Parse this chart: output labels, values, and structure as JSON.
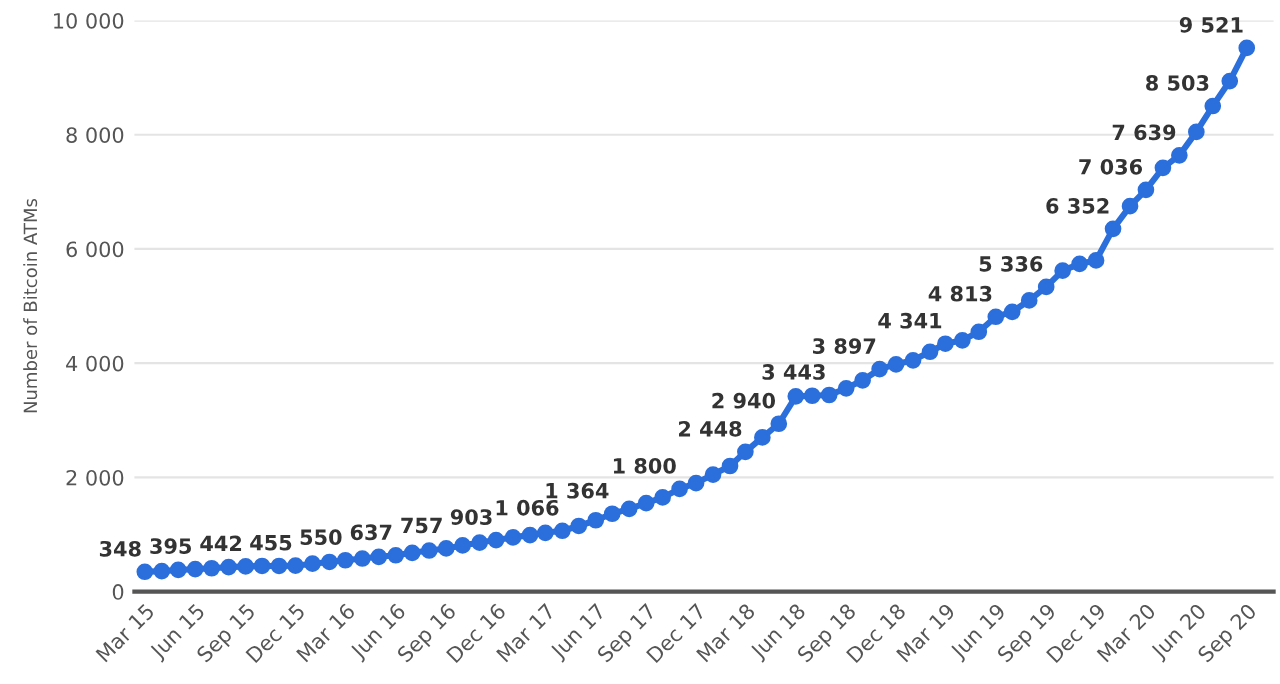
{
  "chart_data": {
    "type": "line",
    "ylabel": "Number of Bitcoin ATMs",
    "x": [
      "2015-03",
      "2015-04",
      "2015-05",
      "2015-06",
      "2015-07",
      "2015-08",
      "2015-09",
      "2015-10",
      "2015-11",
      "2015-12",
      "2016-01",
      "2016-02",
      "2016-03",
      "2016-04",
      "2016-05",
      "2016-06",
      "2016-07",
      "2016-08",
      "2016-09",
      "2016-10",
      "2016-11",
      "2016-12",
      "2017-01",
      "2017-02",
      "2017-03",
      "2017-04",
      "2017-05",
      "2017-06",
      "2017-07",
      "2017-08",
      "2017-09",
      "2017-10",
      "2017-11",
      "2017-12",
      "2018-01",
      "2018-02",
      "2018-03",
      "2018-04",
      "2018-05",
      "2018-06",
      "2018-07",
      "2018-08",
      "2018-09",
      "2018-10",
      "2018-11",
      "2018-12",
      "2019-01",
      "2019-02",
      "2019-03",
      "2019-04",
      "2019-05",
      "2019-06",
      "2019-07",
      "2019-08",
      "2019-09",
      "2019-10",
      "2019-11",
      "2019-12",
      "2020-01",
      "2020-02",
      "2020-03",
      "2020-04",
      "2020-05",
      "2020-06",
      "2020-07",
      "2020-08",
      "2020-09"
    ],
    "series": [
      {
        "color": "#2b6fdc",
        "values": [
          348,
          360,
          380,
          395,
          410,
          430,
          442,
          450,
          450,
          455,
          490,
          520,
          550,
          580,
          610,
          637,
          680,
          720,
          757,
          810,
          860,
          903,
          950,
          990,
          1030,
          1066,
          1150,
          1250,
          1364,
          1450,
          1550,
          1650,
          1800,
          1900,
          2050,
          2200,
          2448,
          2700,
          2940,
          3420,
          3430,
          3443,
          3560,
          3700,
          3897,
          3980,
          4050,
          4200,
          4341,
          4400,
          4550,
          4813,
          4900,
          5100,
          5336,
          5620,
          5740,
          5800,
          6352,
          6750,
          7036,
          7420,
          7639,
          8050,
          8503,
          8940,
          9521
        ],
        "value_labels": [
          "348",
          null,
          null,
          "395",
          null,
          null,
          "442",
          null,
          null,
          "455",
          null,
          null,
          "550",
          null,
          null,
          "637",
          null,
          null,
          "757",
          null,
          null,
          "903",
          null,
          null,
          null,
          "1 066",
          null,
          null,
          "1 364",
          null,
          null,
          null,
          "1 800",
          null,
          null,
          null,
          "2 448",
          null,
          "2 940",
          null,
          null,
          "3 443",
          null,
          null,
          "3 897",
          null,
          null,
          null,
          "4 341",
          null,
          null,
          "4 813",
          null,
          null,
          "5 336",
          null,
          null,
          null,
          "6 352",
          null,
          "7 036",
          null,
          "7 639",
          null,
          "8 503",
          null,
          "9 521"
        ]
      }
    ],
    "xlim": [
      "2015-02-10",
      "2020-10-20"
    ],
    "xticks": [
      {
        "value": "2015-03",
        "label": "Mar 15"
      },
      {
        "value": "2015-06",
        "label": "Jun 15"
      },
      {
        "value": "2015-09",
        "label": "Sep 15"
      },
      {
        "value": "2015-12",
        "label": "Dec 15"
      },
      {
        "value": "2016-03",
        "label": "Mar 16"
      },
      {
        "value": "2016-06",
        "label": "Jun 16"
      },
      {
        "value": "2016-09",
        "label": "Sep 16"
      },
      {
        "value": "2016-12",
        "label": "Dec 16"
      },
      {
        "value": "2017-03",
        "label": "Mar 17"
      },
      {
        "value": "2017-06",
        "label": "Jun 17"
      },
      {
        "value": "2017-09",
        "label": "Sep 17"
      },
      {
        "value": "2017-12",
        "label": "Dec 17"
      },
      {
        "value": "2018-03",
        "label": "Mar 18"
      },
      {
        "value": "2018-06",
        "label": "Jun 18"
      },
      {
        "value": "2018-09",
        "label": "Sep 18"
      },
      {
        "value": "2018-12",
        "label": "Dec 18"
      },
      {
        "value": "2019-03",
        "label": "Mar 19"
      },
      {
        "value": "2019-06",
        "label": "Jun 19"
      },
      {
        "value": "2019-09",
        "label": "Sep 19"
      },
      {
        "value": "2019-12",
        "label": "Dec 19"
      },
      {
        "value": "2020-03",
        "label": "Mar 20"
      },
      {
        "value": "2020-06",
        "label": "Jun 20"
      },
      {
        "value": "2020-09",
        "label": "Sep 20"
      }
    ],
    "ylim": [
      0,
      10000
    ],
    "yticks": [
      0,
      {
        "value": 2000,
        "label": "2 000"
      },
      {
        "value": 4000,
        "label": "4 000"
      },
      {
        "value": 6000,
        "label": "6 000"
      },
      {
        "value": 8000,
        "label": "8 000"
      },
      {
        "value": 10000,
        "label": "10 000"
      }
    ],
    "grid": "y",
    "marker": "circle",
    "line_style": "solid",
    "legend": false
  }
}
